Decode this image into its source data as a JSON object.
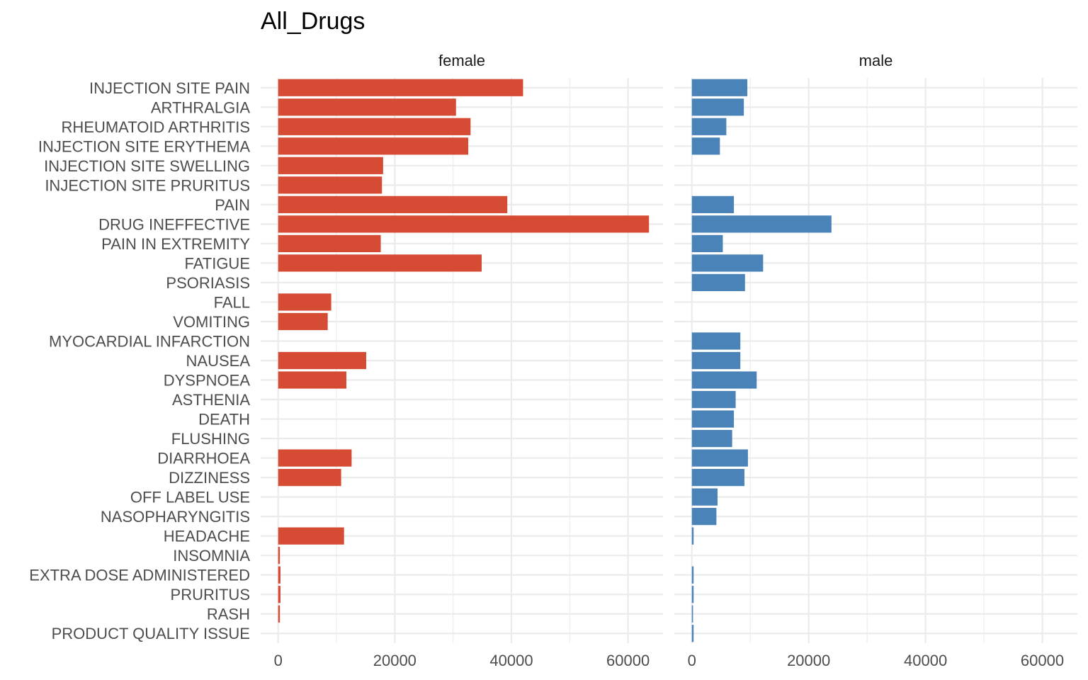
{
  "chart_data": {
    "type": "bar",
    "orientation": "horizontal",
    "title": "All_Drugs",
    "xlabel": "",
    "ylabel": "",
    "xlim": [
      -3000,
      66000
    ],
    "xticks": [
      0,
      20000,
      40000,
      60000
    ],
    "xtick_labels": [
      "0",
      "20000",
      "40000",
      "60000"
    ],
    "grid": true,
    "legend": "none",
    "categories": [
      "INJECTION SITE PAIN",
      "ARTHRALGIA",
      "RHEUMATOID ARTHRITIS",
      "INJECTION SITE ERYTHEMA",
      "INJECTION SITE SWELLING",
      "INJECTION SITE PRURITUS",
      "PAIN",
      "DRUG INEFFECTIVE",
      "PAIN IN EXTREMITY",
      "FATIGUE",
      "PSORIASIS",
      "FALL",
      "VOMITING",
      "MYOCARDIAL INFARCTION",
      "NAUSEA",
      "DYSPNOEA",
      "ASTHENIA",
      "DEATH",
      "FLUSHING",
      "DIARRHOEA",
      "DIZZINESS",
      "OFF LABEL USE",
      "NASOPHARYNGITIS",
      "HEADACHE",
      "INSOMNIA",
      "EXTRA DOSE ADMINISTERED",
      "PRURITUS",
      "RASH",
      "PRODUCT QUALITY ISSUE"
    ],
    "series": [
      {
        "name": "female",
        "color": "#d64b33",
        "values": [
          42000,
          30500,
          33000,
          32600,
          18000,
          17800,
          39300,
          63600,
          17600,
          34900,
          0,
          9100,
          8500,
          0,
          15100,
          11700,
          0,
          0,
          0,
          12600,
          10800,
          0,
          0,
          11300,
          300,
          400,
          400,
          300,
          0
        ]
      },
      {
        "name": "male",
        "color": "#4a83b8",
        "values": [
          9500,
          8900,
          5900,
          4800,
          0,
          0,
          7200,
          23900,
          5300,
          12200,
          9100,
          0,
          0,
          8300,
          8300,
          11100,
          7500,
          7200,
          6900,
          9600,
          9000,
          4400,
          4200,
          300,
          0,
          300,
          300,
          200,
          300
        ]
      }
    ]
  }
}
